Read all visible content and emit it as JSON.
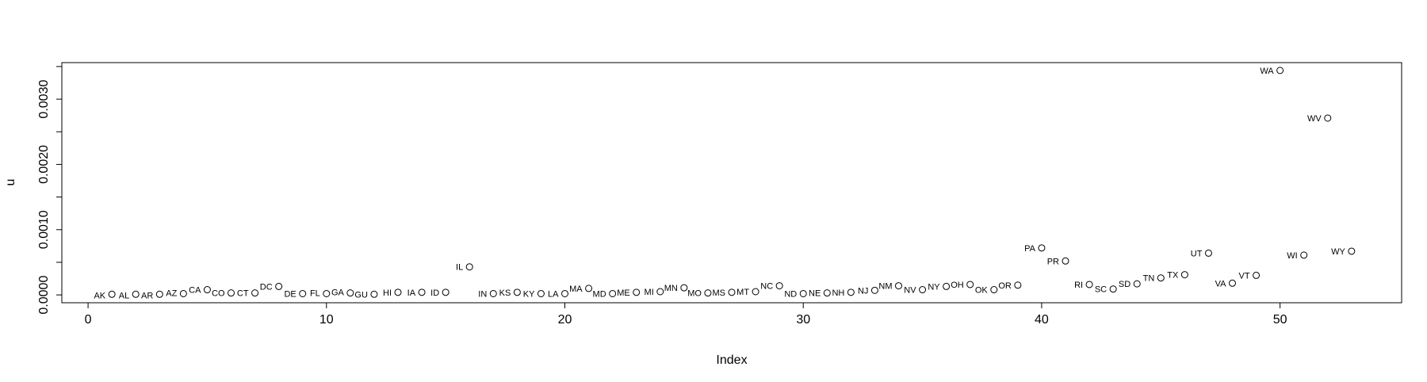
{
  "chart_data": {
    "type": "scatter",
    "title": "",
    "xlabel": "Index",
    "ylabel": "u",
    "xlim": [
      -1.1,
      55.1
    ],
    "ylim": [
      -0.00012,
      0.00356
    ],
    "xticks": [
      0,
      10,
      20,
      30,
      40,
      50
    ],
    "yticks": [
      0.0,
      0.001,
      0.002,
      0.003
    ],
    "ytick_labels": [
      "0.0000",
      "0.0010",
      "0.0020",
      "0.0030"
    ],
    "grid": false,
    "marker": "open-circle",
    "points": [
      {
        "x": 1,
        "y": 1e-05,
        "label": "AK",
        "side": "left",
        "dy": 1
      },
      {
        "x": 2,
        "y": 1e-05,
        "label": "AL",
        "side": "left",
        "dy": 1
      },
      {
        "x": 3,
        "y": 1e-05,
        "label": "AR",
        "side": "left",
        "dy": 1
      },
      {
        "x": 4,
        "y": 2e-05,
        "label": "AZ",
        "side": "left",
        "dy": -1
      },
      {
        "x": 5,
        "y": 8e-05,
        "label": "CA",
        "side": "left",
        "dy": 0
      },
      {
        "x": 6,
        "y": 3e-05,
        "label": "CO",
        "side": "left",
        "dy": 0
      },
      {
        "x": 7,
        "y": 3e-05,
        "label": "CT",
        "side": "left",
        "dy": 0
      },
      {
        "x": 8,
        "y": 0.00013,
        "label": "DC",
        "side": "left",
        "dy": 0
      },
      {
        "x": 9,
        "y": 2e-05,
        "label": "DE",
        "side": "left",
        "dy": 0
      },
      {
        "x": 10,
        "y": 2e-05,
        "label": "FL",
        "side": "left",
        "dy": -1
      },
      {
        "x": 11,
        "y": 3e-05,
        "label": "GA",
        "side": "left",
        "dy": -1
      },
      {
        "x": 12,
        "y": 1e-05,
        "label": "GU",
        "side": "left",
        "dy": 0
      },
      {
        "x": 13,
        "y": 4e-05,
        "label": "HI",
        "side": "left",
        "dy": 0
      },
      {
        "x": 14,
        "y": 4e-05,
        "label": "IA",
        "side": "left",
        "dy": 0
      },
      {
        "x": 15,
        "y": 4e-05,
        "label": "ID",
        "side": "left",
        "dy": 0
      },
      {
        "x": 16,
        "y": 0.00043,
        "label": "IL",
        "side": "left",
        "dy": 0
      },
      {
        "x": 17,
        "y": 2e-05,
        "label": "IN",
        "side": "left",
        "dy": 0
      },
      {
        "x": 18,
        "y": 4e-05,
        "label": "KS",
        "side": "left",
        "dy": 0
      },
      {
        "x": 19,
        "y": 2e-05,
        "label": "KY",
        "side": "left",
        "dy": 0
      },
      {
        "x": 20,
        "y": 2e-05,
        "label": "LA",
        "side": "left",
        "dy": 0
      },
      {
        "x": 21,
        "y": 0.0001,
        "label": "MA",
        "side": "left",
        "dy": 0
      },
      {
        "x": 22,
        "y": 2e-05,
        "label": "MD",
        "side": "left",
        "dy": 0
      },
      {
        "x": 23,
        "y": 4e-05,
        "label": "ME",
        "side": "left",
        "dy": 0
      },
      {
        "x": 24,
        "y": 5e-05,
        "label": "MI",
        "side": "left",
        "dy": 0
      },
      {
        "x": 25,
        "y": 0.00011,
        "label": "MN",
        "side": "left",
        "dy": 0
      },
      {
        "x": 26,
        "y": 3e-05,
        "label": "MO",
        "side": "left",
        "dy": 0
      },
      {
        "x": 27,
        "y": 4e-05,
        "label": "MS",
        "side": "left",
        "dy": 0
      },
      {
        "x": 28,
        "y": 5e-05,
        "label": "MT",
        "side": "left",
        "dy": 0
      },
      {
        "x": 29,
        "y": 0.00014,
        "label": "NC",
        "side": "left",
        "dy": 0
      },
      {
        "x": 30,
        "y": 2e-05,
        "label": "ND",
        "side": "left",
        "dy": 0
      },
      {
        "x": 31,
        "y": 3e-05,
        "label": "NE",
        "side": "left",
        "dy": 0
      },
      {
        "x": 32,
        "y": 4e-05,
        "label": "NH",
        "side": "left",
        "dy": 0
      },
      {
        "x": 33,
        "y": 7e-05,
        "label": "NJ",
        "side": "left",
        "dy": 0
      },
      {
        "x": 34,
        "y": 0.00014,
        "label": "NM",
        "side": "left",
        "dy": 0
      },
      {
        "x": 35,
        "y": 8e-05,
        "label": "NV",
        "side": "left",
        "dy": 0
      },
      {
        "x": 36,
        "y": 0.00013,
        "label": "NY",
        "side": "left",
        "dy": 0
      },
      {
        "x": 37,
        "y": 0.00016,
        "label": "OH",
        "side": "left",
        "dy": 0
      },
      {
        "x": 38,
        "y": 8e-05,
        "label": "OK",
        "side": "left",
        "dy": 0
      },
      {
        "x": 39,
        "y": 0.00015,
        "label": "OR",
        "side": "left",
        "dy": 0
      },
      {
        "x": 40,
        "y": 0.00072,
        "label": "PA",
        "side": "left",
        "dy": 0
      },
      {
        "x": 41,
        "y": 0.00052,
        "label": "PR",
        "side": "left",
        "dy": 0
      },
      {
        "x": 42,
        "y": 0.00016,
        "label": "RI",
        "side": "left",
        "dy": 0
      },
      {
        "x": 43,
        "y": 9e-05,
        "label": "SC",
        "side": "left",
        "dy": 0
      },
      {
        "x": 44,
        "y": 0.00017,
        "label": "SD",
        "side": "left",
        "dy": 0
      },
      {
        "x": 45,
        "y": 0.00026,
        "label": "TN",
        "side": "left",
        "dy": 0
      },
      {
        "x": 46,
        "y": 0.00031,
        "label": "TX",
        "side": "left",
        "dy": 0
      },
      {
        "x": 47,
        "y": 0.00064,
        "label": "UT",
        "side": "left",
        "dy": 0
      },
      {
        "x": 48,
        "y": 0.00018,
        "label": "VA",
        "side": "left",
        "dy": 0
      },
      {
        "x": 49,
        "y": 0.0003,
        "label": "VT",
        "side": "left",
        "dy": 0
      },
      {
        "x": 50,
        "y": 0.00344,
        "label": "WA",
        "side": "left",
        "dy": 0
      },
      {
        "x": 51,
        "y": 0.00061,
        "label": "WI",
        "side": "left",
        "dy": 0
      },
      {
        "x": 52,
        "y": 0.00271,
        "label": "WV",
        "side": "left",
        "dy": 0
      },
      {
        "x": 53,
        "y": 0.00067,
        "label": "WY",
        "side": "left",
        "dy": 0
      }
    ]
  },
  "colors": {
    "background": "#ffffff",
    "foreground": "#000000"
  }
}
